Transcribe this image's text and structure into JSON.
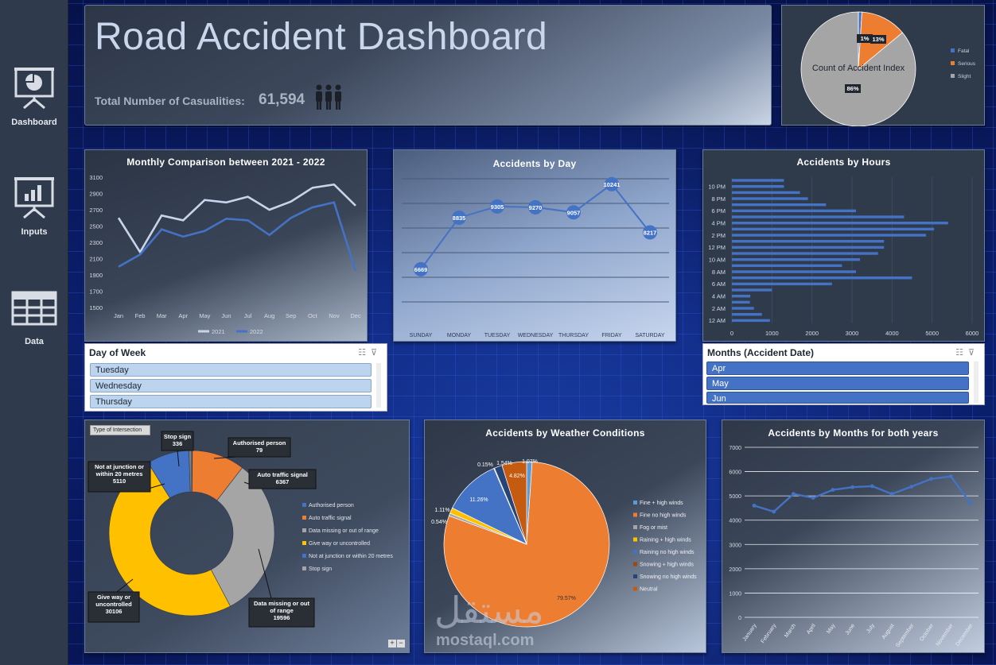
{
  "sidebar": {
    "items": [
      {
        "label": "Dashboard"
      },
      {
        "label": "Inputs"
      },
      {
        "label": "Data"
      }
    ]
  },
  "header": {
    "title": "Road Accident Dashboard",
    "casualties_label": "Total Number of Casualities:",
    "casualties_value": "61,594"
  },
  "severity_pie": {
    "title": "Count of Accident Index",
    "slice_labels": [
      "1%",
      "13%",
      "86%"
    ],
    "legend": [
      "Fatal",
      "Serious",
      "Slight"
    ]
  },
  "day_slicer": {
    "title": "Day of Week",
    "items": [
      "Tuesday",
      "Wednesday",
      "Thursday"
    ]
  },
  "month_slicer": {
    "title": "Months (Accident Date)",
    "items": [
      "Apr",
      "May",
      "Jun"
    ]
  },
  "intersection_chart": {
    "filter_button": "Type of Intersection",
    "callouts": [
      {
        "name": "Stop sign",
        "value": "336"
      },
      {
        "name": "Authorised person",
        "value": "79"
      },
      {
        "name": "Auto traffic signal",
        "value": "6367"
      },
      {
        "name": "Not at junction or within 20 metres",
        "value": "5110"
      },
      {
        "name": "Give way or uncontrolled",
        "value": "30106"
      },
      {
        "name": "Data missing or out of range",
        "value": "19596"
      }
    ],
    "legend": [
      "Authorised person",
      "Auto traffic signal",
      "Data missing or out of range",
      "Give way or uncontrolled",
      "Not at junction or within 20 metres",
      "Stop sign"
    ],
    "zoom_buttons": [
      "+",
      "−"
    ]
  },
  "weather_chart": {
    "title": "Accidents by Weather Conditions",
    "legend": [
      "Fine + high winds",
      "Fine no high winds",
      "Fog or mist",
      "Raining + high winds",
      "Raining no high winds",
      "Snowing + high winds",
      "Snowing no high winds",
      "Neutral"
    ]
  },
  "watermark": {
    "arabic": "مستقل",
    "latin": "mostaql.com"
  },
  "colors": {
    "accent_blue": "#4472c4",
    "orange": "#ed7d31",
    "gray": "#a5a5a5",
    "yellow": "#ffc000",
    "light_line": "#c9d4ea"
  },
  "chart_data": [
    {
      "type": "line",
      "title": "Monthly Comparison between 2021 - 2022",
      "categories": [
        "Jan",
        "Feb",
        "Mar",
        "Apr",
        "May",
        "Jun",
        "Jul",
        "Aug",
        "Sep",
        "Oct",
        "Nov",
        "Dec"
      ],
      "series": [
        {
          "name": "2021",
          "values": [
            2600,
            2180,
            2630,
            2570,
            2820,
            2790,
            2860,
            2700,
            2800,
            2970,
            3010,
            2750
          ]
        },
        {
          "name": "2022",
          "values": [
            2000,
            2150,
            2460,
            2370,
            2440,
            2590,
            2570,
            2390,
            2600,
            2730,
            2790,
            1950
          ]
        }
      ],
      "yticks": [
        1500,
        1700,
        1900,
        2100,
        2300,
        2500,
        2700,
        2900,
        3100
      ],
      "ylim": [
        1500,
        3100
      ],
      "legend_position": "bottom"
    },
    {
      "type": "line",
      "title": "Accidents by Day",
      "categories": [
        "SUNDAY",
        "MONDAY",
        "TUESDAY",
        "WEDNESDAY",
        "THURSDAY",
        "FRIDAY",
        "SATURDAY"
      ],
      "values": [
        6669,
        8835,
        9305,
        9270,
        9057,
        10241,
        8217
      ],
      "data_labels": [
        "6669",
        "8835",
        "9305",
        "9270",
        "9057",
        "10241",
        "8217"
      ],
      "grid": true
    },
    {
      "type": "bar",
      "orientation": "horizontal",
      "title": "Accidents by Hours",
      "categories": [
        "12 AM",
        "1 AM",
        "2 AM",
        "3 AM",
        "4 AM",
        "5 AM",
        "6 AM",
        "7 AM",
        "8 AM",
        "9 AM",
        "10 AM",
        "11 AM",
        "12 PM",
        "1 PM",
        "2 PM",
        "3 PM",
        "4 PM",
        "5 PM",
        "6 PM",
        "7 PM",
        "8 PM",
        "9 PM",
        "10 PM",
        "11 PM"
      ],
      "category_labels": [
        "12 AM",
        "2 AM",
        "4 AM",
        "6 AM",
        "8 AM",
        "10 AM",
        "12 PM",
        "2 PM",
        "4 PM",
        "6 PM",
        "8 PM",
        "10 PM"
      ],
      "values": [
        950,
        750,
        550,
        450,
        460,
        1000,
        2500,
        4500,
        3100,
        2750,
        3200,
        3650,
        3800,
        3800,
        4850,
        5050,
        5400,
        4300,
        3100,
        2350,
        1900,
        1700,
        1300,
        1300
      ],
      "xticks": [
        0,
        1000,
        2000,
        3000,
        4000,
        5000,
        6000
      ],
      "xlim": [
        0,
        6000
      ]
    },
    {
      "type": "pie",
      "title": "Count of Accident Index",
      "categories": [
        "Fatal",
        "Serious",
        "Slight"
      ],
      "values": [
        1,
        13,
        86
      ],
      "unit": "%"
    },
    {
      "type": "pie",
      "subtype": "donut",
      "title": "Type of Intersection",
      "categories": [
        "Stop sign",
        "Authorised person",
        "Auto traffic signal",
        "Not at junction or within 20 metres",
        "Give way or uncontrolled",
        "Data missing or out of range"
      ],
      "values": [
        336,
        79,
        6367,
        5110,
        30106,
        19596
      ]
    },
    {
      "type": "pie",
      "title": "Accidents by Weather Conditions",
      "categories": [
        "Fine + high winds",
        "Fine no high winds",
        "Fog or mist",
        "Raining + high winds",
        "Raining no high winds",
        "Snowing + high winds",
        "Snowing no high winds",
        "Neutral"
      ],
      "values": [
        1.07,
        79.57,
        0.54,
        1.11,
        11.26,
        0.15,
        1.54,
        4.82
      ],
      "data_labels": [
        "1.07%",
        "79.57%",
        "0.54%",
        "1.11%",
        "11.26%",
        "0.15%",
        "1.54%",
        "4.82%"
      ],
      "unit": "%"
    },
    {
      "type": "line",
      "title": "Accidents by Months for both years",
      "categories": [
        "January",
        "February",
        "March",
        "April",
        "May",
        "June",
        "July",
        "August",
        "September",
        "October",
        "November",
        "December"
      ],
      "values": [
        4600,
        4350,
        5080,
        4920,
        5250,
        5360,
        5400,
        5080,
        5380,
        5700,
        5800,
        4700
      ],
      "yticks": [
        0,
        1000,
        2000,
        3000,
        4000,
        5000,
        6000,
        7000
      ],
      "ylim": [
        0,
        7000
      ],
      "grid": true
    }
  ]
}
